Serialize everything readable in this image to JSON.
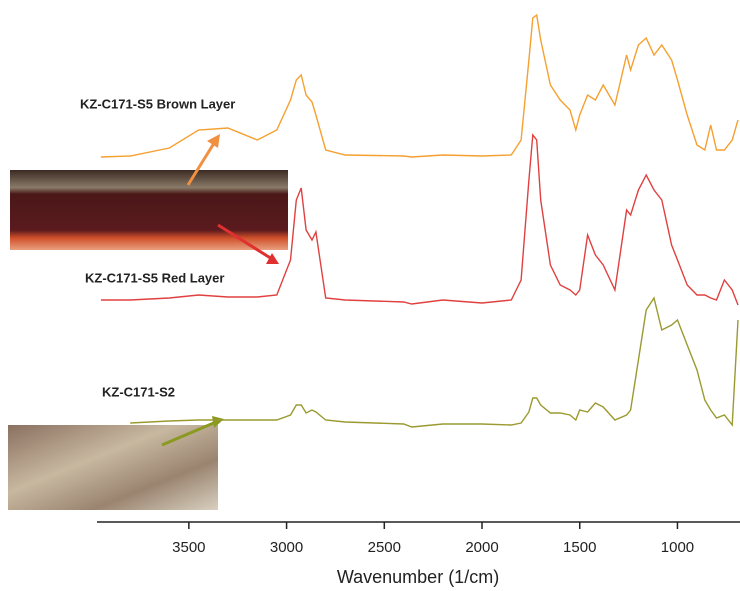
{
  "chart_data": {
    "type": "line",
    "x_label": "Wavenumber (1/cm)",
    "x": [
      3950,
      3800,
      3600,
      3450,
      3300,
      3150,
      3050,
      2980,
      2950,
      2925,
      2900,
      2870,
      2850,
      2800,
      2700,
      2400,
      2360,
      2200,
      2000,
      1850,
      1800,
      1760,
      1740,
      1720,
      1700,
      1650,
      1600,
      1550,
      1520,
      1500,
      1460,
      1420,
      1380,
      1320,
      1260,
      1240,
      1200,
      1160,
      1120,
      1080,
      1030,
      1000,
      950,
      900,
      860,
      830,
      800,
      760,
      720,
      690
    ],
    "xlim": [
      3970,
      680
    ],
    "xticks": [
      3500,
      3000,
      2500,
      2000,
      1500,
      1000
    ],
    "ylim": [
      0,
      520
    ],
    "series": [
      {
        "name": "KZ-C171-S5 Brown Layer",
        "color": "#f5a030",
        "values": [
          365,
          366,
          374,
          392,
          394,
          382,
          392,
          422,
          442,
          447,
          427,
          420,
          407,
          372,
          367,
          366,
          365,
          367,
          366,
          367,
          382,
          462,
          504,
          507,
          482,
          437,
          422,
          412,
          392,
          407,
          427,
          422,
          437,
          417,
          467,
          452,
          477,
          484,
          467,
          477,
          462,
          442,
          407,
          377,
          372,
          397,
          372,
          372,
          382,
          402
        ]
      },
      {
        "name": "KZ-C171-S5 Red Layer",
        "color": "#e04040",
        "values": [
          222,
          222,
          224,
          227,
          225,
          225,
          227,
          262,
          322,
          334,
          292,
          282,
          290,
          224,
          222,
          220,
          218,
          222,
          219,
          222,
          242,
          342,
          387,
          382,
          322,
          257,
          237,
          232,
          227,
          232,
          287,
          267,
          257,
          232,
          312,
          307,
          332,
          347,
          332,
          322,
          277,
          262,
          237,
          227,
          227,
          224,
          222,
          242,
          232,
          217
        ]
      },
      {
        "name": "KZ-C171-S2",
        "color": "#9a9a30",
        "values": [
          null,
          99,
          101,
          102,
          102,
          102,
          102,
          107,
          117,
          117,
          109,
          112,
          110,
          102,
          100,
          98,
          95,
          98,
          98,
          97,
          99,
          110,
          124,
          124,
          117,
          109,
          109,
          107,
          102,
          112,
          110,
          119,
          115,
          102,
          107,
          112,
          162,
          212,
          224,
          192,
          197,
          202,
          177,
          152,
          122,
          112,
          104,
          107,
          97,
          202
        ]
      }
    ]
  }
}
